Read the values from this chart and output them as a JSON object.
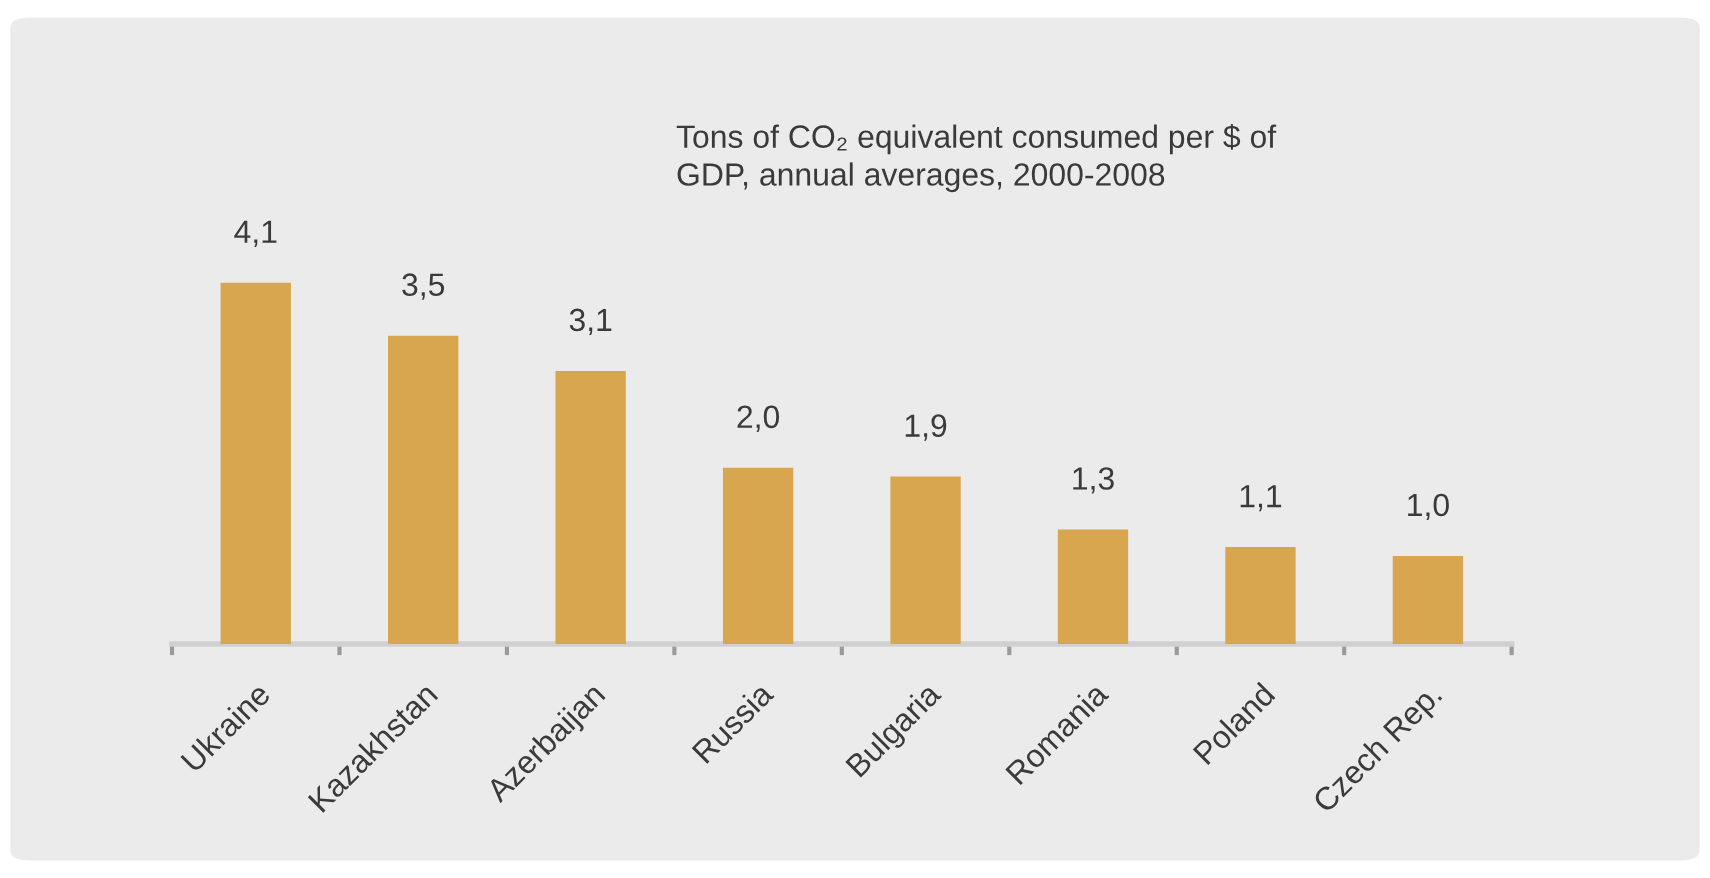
{
  "chart_data": {
    "type": "bar",
    "title": "Tons of CO₂ equivalent consumed per $ of\nGDP, annual averages, 2000-2008",
    "categories": [
      "Ukraine",
      "Kazakhstan",
      "Azerbaijan",
      "Russia",
      "Bulgaria",
      "Romania",
      "Poland",
      "Czech Rep."
    ],
    "values": [
      4.1,
      3.5,
      3.1,
      2.0,
      1.9,
      1.3,
      1.1,
      1.0
    ],
    "value_labels": [
      "4,1",
      "3,5",
      "3,1",
      "2,0",
      "1,9",
      "1,3",
      "1,1",
      "1,0"
    ],
    "color": "#d8a64f",
    "tick_labels": "x"
  }
}
